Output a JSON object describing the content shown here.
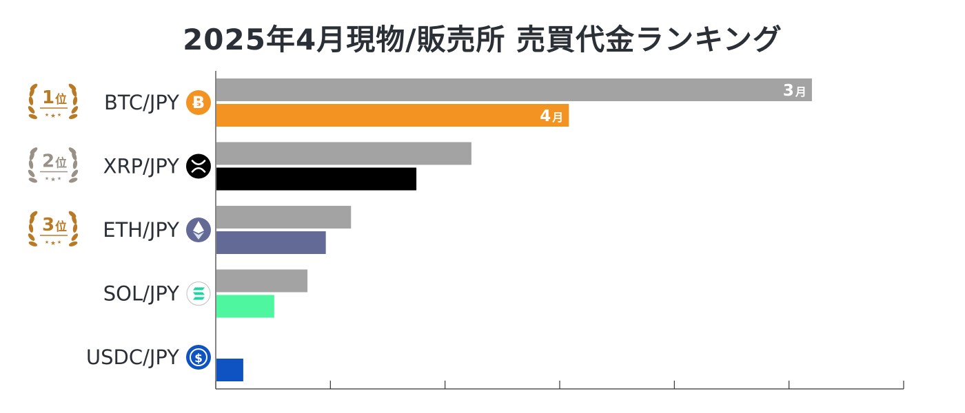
{
  "title": "2025年4月現物/販売所 売買代金ランキング",
  "colors": {
    "previous_month": "#a3a3a3",
    "btc": "#f39322",
    "xrp": "#000000",
    "eth": "#636a95",
    "sol": "#4ff6a0",
    "usdc": "#0f52c2",
    "gold": "#b97a25",
    "silver": "#9a9186"
  },
  "chart_data": {
    "type": "bar",
    "orientation": "horizontal",
    "title": "2025年4月現物/販売所 売買代金ランキング",
    "xlim": [
      0,
      6
    ],
    "grid": false,
    "categories": [
      "BTC/JPY",
      "XRP/JPY",
      "ETH/JPY",
      "SOL/JPY",
      "USDC/JPY"
    ],
    "series": [
      {
        "name": "3月",
        "color": "#a3a3a3",
        "values": [
          5.2,
          2.23,
          1.18,
          0.8,
          null
        ]
      },
      {
        "name": "4月",
        "colors": [
          "#f39322",
          "#000000",
          "#636a95",
          "#4ff6a0",
          "#0f52c2"
        ],
        "values": [
          3.08,
          1.75,
          0.96,
          0.51,
          0.24
        ]
      }
    ],
    "bar_labels": [
      {
        "series": 0,
        "category": 0,
        "number": "3",
        "suffix": "月"
      },
      {
        "series": 1,
        "category": 0,
        "number": "4",
        "suffix": "月"
      }
    ],
    "ranks": [
      {
        "category": 0,
        "number": "1",
        "suffix": "位",
        "tier": "gold"
      },
      {
        "category": 1,
        "number": "2",
        "suffix": "位",
        "tier": "silver"
      },
      {
        "category": 2,
        "number": "3",
        "suffix": "位",
        "tier": "gold"
      }
    ],
    "icons": [
      "bitcoin-icon",
      "xrp-icon",
      "ethereum-icon",
      "solana-icon",
      "usdc-icon"
    ]
  }
}
